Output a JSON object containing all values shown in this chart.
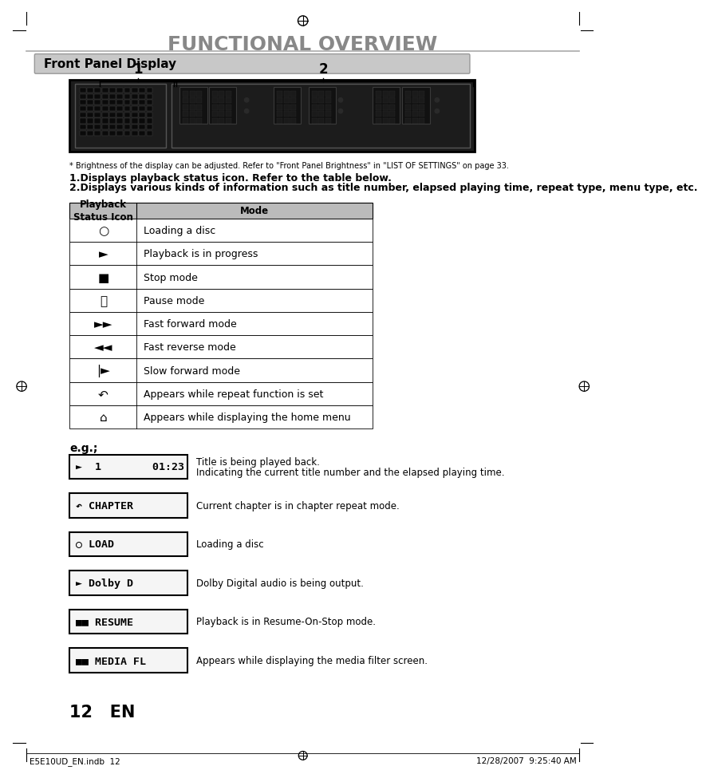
{
  "title": "FUNCTIONAL OVERVIEW",
  "section_title": "Front Panel Display",
  "bg_color": "#ffffff",
  "title_color": "#888888",
  "table_header_col1": "Playback\nStatus Icon",
  "table_header_col2": "Mode",
  "table_rows": [
    [
      "○",
      "Loading a disc"
    ],
    [
      "►",
      "Playback is in progress"
    ],
    [
      "■",
      "Stop mode"
    ],
    [
      "⏸",
      "Pause mode"
    ],
    [
      "►►",
      "Fast forward mode"
    ],
    [
      "◄◄",
      "Fast reverse mode"
    ],
    [
      "|►",
      "Slow forward mode"
    ],
    [
      "↶",
      "Appears while repeat function is set"
    ],
    [
      "⌂",
      "Appears while displaying the home menu"
    ]
  ],
  "eg_label": "e.g.;",
  "eg_displays": [
    [
      "►  1        01:23",
      "Title is being played back.\nIndicating the current title number and the elapsed playing time."
    ],
    [
      "↶ CHAPTER",
      "Current chapter is in chapter repeat mode."
    ],
    [
      "○ LOAD",
      "Loading a disc"
    ],
    [
      "► Dolby D",
      "Dolby Digital audio is being output."
    ],
    [
      "■■ RESUME",
      "Playback is in Resume-On-Stop mode."
    ],
    [
      "■■ MEDIA FL",
      "Appears while displaying the media filter screen."
    ]
  ],
  "note_text": "* Brightness of the display can be adjusted. Refer to \"Front Panel Brightness\" in \"LIST OF SETTINGS\" on page 33.",
  "bold_text1": "1.Displays playback status icon. Refer to the table below.",
  "bold_text2": "2.Displays various kinds of information such as title number, elapsed playing time, repeat type, menu type, etc.",
  "page_num": "12   EN",
  "footer_left": "E5E10UD_EN.indb  12",
  "footer_right": "12/28/2007  9:25:40 AM",
  "display_label1": "1",
  "display_label2": "2"
}
